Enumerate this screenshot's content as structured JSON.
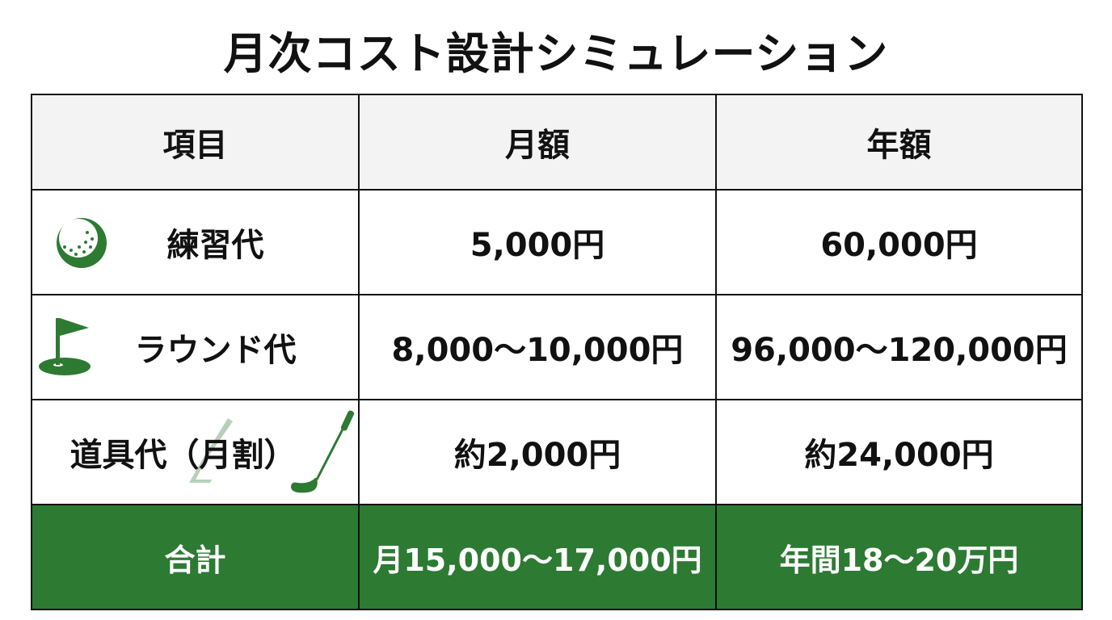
{
  "title": "月次コスト設計シミュレーション",
  "headers": [
    "項目",
    "月額",
    "年額"
  ],
  "rows": [
    {
      "item": "練習代",
      "icon": "golf-ball-icon",
      "monthly": "5,000円",
      "yearly": "60,000円"
    },
    {
      "item": "ラウンド代",
      "icon": "golf-flag-icon",
      "monthly": "8,000〜10,000円",
      "yearly": "96,000〜120,000円"
    },
    {
      "item": "道具代（月割）",
      "icon": "golf-club-icon",
      "monthly": "約2,000円",
      "yearly": "約24,000円"
    }
  ],
  "total": {
    "item": "合計",
    "monthly": "月15,000〜17,000円",
    "yearly": "年間18〜20万円"
  },
  "colors": {
    "accent": "#2d7a33",
    "header_bg": "#f3f3f3"
  }
}
